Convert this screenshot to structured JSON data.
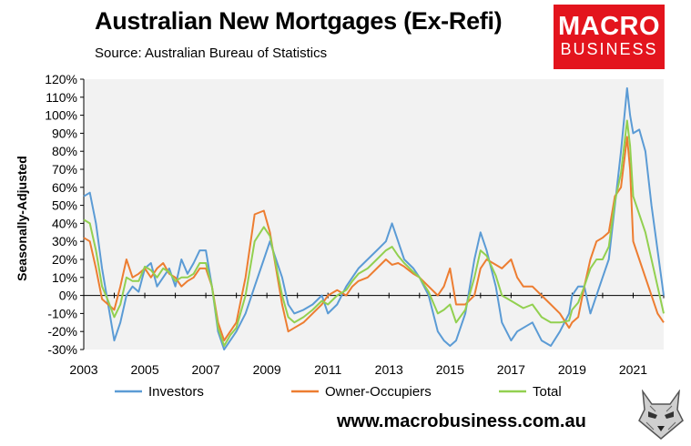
{
  "header": {
    "title": "Australian New Mortgages (Ex-Refi)",
    "subtitle": "Source: Australian Bureau of Statistics"
  },
  "logo": {
    "line1": "MACRO",
    "line2": "BUSINESS"
  },
  "footer": {
    "url": "www.macrobusiness.com.au"
  },
  "colors": {
    "investors": "#5b9bd5",
    "owner_occupiers": "#ed7d31",
    "total": "#92d050",
    "plot_bg": "#f2f2f2",
    "logo_bg": "#e3141d"
  },
  "chart_data": {
    "type": "line",
    "title": "Australian New Mortgages (Ex-Refi)",
    "ylabel": "Seasonally-Adjusted",
    "xlabel": "",
    "ylim": [
      -30,
      120
    ],
    "xlim": [
      2003,
      2022
    ],
    "y_ticks": [
      "-30%",
      "-20%",
      "-10%",
      "0%",
      "10%",
      "20%",
      "30%",
      "40%",
      "50%",
      "60%",
      "70%",
      "80%",
      "90%",
      "100%",
      "110%",
      "120%"
    ],
    "x_ticks": [
      "2003",
      "2005",
      "2007",
      "2009",
      "2011",
      "2013",
      "2015",
      "2017",
      "2019",
      "2021"
    ],
    "legend_position": "bottom",
    "series": [
      {
        "name": "Investors",
        "x": [
          2003.0,
          2003.2,
          2003.4,
          2003.6,
          2003.8,
          2004.0,
          2004.2,
          2004.4,
          2004.6,
          2004.8,
          2005.0,
          2005.2,
          2005.4,
          2005.6,
          2005.8,
          2006.0,
          2006.2,
          2006.4,
          2006.6,
          2006.8,
          2007.0,
          2007.2,
          2007.4,
          2007.6,
          2007.8,
          2008.0,
          2008.3,
          2008.6,
          2008.9,
          2009.1,
          2009.3,
          2009.5,
          2009.7,
          2009.9,
          2010.2,
          2010.5,
          2010.8,
          2011.0,
          2011.3,
          2011.6,
          2011.8,
          2012.0,
          2012.3,
          2012.6,
          2012.9,
          2013.1,
          2013.3,
          2013.5,
          2013.8,
          2014.0,
          2014.3,
          2014.6,
          2014.8,
          2015.0,
          2015.2,
          2015.5,
          2015.8,
          2016.0,
          2016.2,
          2016.5,
          2016.7,
          2017.0,
          2017.2,
          2017.4,
          2017.7,
          2018.0,
          2018.3,
          2018.6,
          2018.9,
          2019.0,
          2019.2,
          2019.4,
          2019.6,
          2019.8,
          2020.0,
          2020.2,
          2020.4,
          2020.6,
          2020.8,
          2020.9,
          2021.0,
          2021.2,
          2021.4,
          2021.6,
          2021.8,
          2022.0
        ],
        "values": [
          55,
          57,
          40,
          15,
          -5,
          -25,
          -15,
          0,
          5,
          2,
          15,
          18,
          5,
          10,
          15,
          5,
          20,
          12,
          18,
          25,
          25,
          5,
          -20,
          -30,
          -25,
          -20,
          -10,
          5,
          20,
          30,
          20,
          10,
          -5,
          -10,
          -8,
          -5,
          0,
          -10,
          -5,
          5,
          10,
          15,
          20,
          25,
          30,
          40,
          30,
          20,
          15,
          10,
          0,
          -20,
          -25,
          -28,
          -25,
          -10,
          20,
          35,
          25,
          5,
          -15,
          -25,
          -20,
          -18,
          -15,
          -25,
          -28,
          -20,
          -10,
          0,
          5,
          5,
          -10,
          0,
          10,
          20,
          50,
          80,
          115,
          100,
          90,
          92,
          80,
          50,
          25,
          0
        ]
      },
      {
        "name": "Owner-Occupiers",
        "x": [
          2003.0,
          2003.2,
          2003.4,
          2003.6,
          2003.8,
          2004.0,
          2004.2,
          2004.4,
          2004.6,
          2004.8,
          2005.0,
          2005.2,
          2005.4,
          2005.6,
          2005.8,
          2006.0,
          2006.2,
          2006.4,
          2006.6,
          2006.8,
          2007.0,
          2007.2,
          2007.4,
          2007.6,
          2007.8,
          2008.0,
          2008.3,
          2008.6,
          2008.9,
          2009.1,
          2009.3,
          2009.5,
          2009.7,
          2009.9,
          2010.2,
          2010.5,
          2010.8,
          2011.0,
          2011.3,
          2011.6,
          2011.8,
          2012.0,
          2012.3,
          2012.6,
          2012.9,
          2013.1,
          2013.3,
          2013.5,
          2013.8,
          2014.0,
          2014.3,
          2014.6,
          2014.8,
          2015.0,
          2015.2,
          2015.5,
          2015.8,
          2016.0,
          2016.2,
          2016.5,
          2016.7,
          2017.0,
          2017.2,
          2017.4,
          2017.7,
          2018.0,
          2018.3,
          2018.6,
          2018.9,
          2019.0,
          2019.2,
          2019.4,
          2019.6,
          2019.8,
          2020.0,
          2020.2,
          2020.4,
          2020.6,
          2020.8,
          2020.9,
          2021.0,
          2021.2,
          2021.4,
          2021.6,
          2021.8,
          2022.0
        ],
        "values": [
          32,
          30,
          15,
          -2,
          -5,
          -8,
          5,
          20,
          10,
          12,
          15,
          10,
          15,
          18,
          12,
          10,
          5,
          8,
          10,
          15,
          15,
          5,
          -15,
          -25,
          -20,
          -15,
          10,
          45,
          47,
          35,
          15,
          -5,
          -20,
          -18,
          -15,
          -10,
          -5,
          0,
          3,
          0,
          5,
          8,
          10,
          15,
          20,
          17,
          18,
          16,
          12,
          10,
          5,
          0,
          5,
          15,
          -5,
          -5,
          0,
          15,
          20,
          17,
          15,
          20,
          10,
          5,
          5,
          0,
          -5,
          -10,
          -18,
          -15,
          -12,
          5,
          20,
          30,
          32,
          35,
          55,
          60,
          88,
          70,
          30,
          20,
          10,
          0,
          -10,
          -15
        ]
      },
      {
        "name": "Total",
        "x": [
          2003.0,
          2003.2,
          2003.4,
          2003.6,
          2003.8,
          2004.0,
          2004.2,
          2004.4,
          2004.6,
          2004.8,
          2005.0,
          2005.2,
          2005.4,
          2005.6,
          2005.8,
          2006.0,
          2006.2,
          2006.4,
          2006.6,
          2006.8,
          2007.0,
          2007.2,
          2007.4,
          2007.6,
          2007.8,
          2008.0,
          2008.3,
          2008.6,
          2008.9,
          2009.1,
          2009.3,
          2009.5,
          2009.7,
          2009.9,
          2010.2,
          2010.5,
          2010.8,
          2011.0,
          2011.3,
          2011.6,
          2011.8,
          2012.0,
          2012.3,
          2012.6,
          2012.9,
          2013.1,
          2013.3,
          2013.5,
          2013.8,
          2014.0,
          2014.3,
          2014.6,
          2014.8,
          2015.0,
          2015.2,
          2015.5,
          2015.8,
          2016.0,
          2016.2,
          2016.5,
          2016.7,
          2017.0,
          2017.2,
          2017.4,
          2017.7,
          2018.0,
          2018.3,
          2018.6,
          2018.9,
          2019.0,
          2019.2,
          2019.4,
          2019.6,
          2019.8,
          2020.0,
          2020.2,
          2020.4,
          2020.6,
          2020.8,
          2020.9,
          2021.0,
          2021.2,
          2021.4,
          2021.6,
          2021.8,
          2022.0
        ],
        "values": [
          42,
          40,
          25,
          5,
          -3,
          -12,
          -5,
          10,
          8,
          8,
          16,
          14,
          10,
          15,
          13,
          8,
          10,
          10,
          12,
          18,
          18,
          5,
          -18,
          -28,
          -22,
          -18,
          0,
          30,
          38,
          33,
          17,
          0,
          -12,
          -15,
          -12,
          -8,
          -3,
          -5,
          0,
          3,
          8,
          12,
          15,
          20,
          25,
          27,
          22,
          18,
          13,
          10,
          2,
          -10,
          -8,
          -5,
          -15,
          -8,
          10,
          25,
          22,
          11,
          0,
          -3,
          -5,
          -7,
          -5,
          -12,
          -15,
          -15,
          -14,
          -8,
          -4,
          5,
          15,
          20,
          20,
          27,
          52,
          68,
          97,
          83,
          55,
          45,
          35,
          20,
          5,
          -10
        ]
      }
    ]
  }
}
